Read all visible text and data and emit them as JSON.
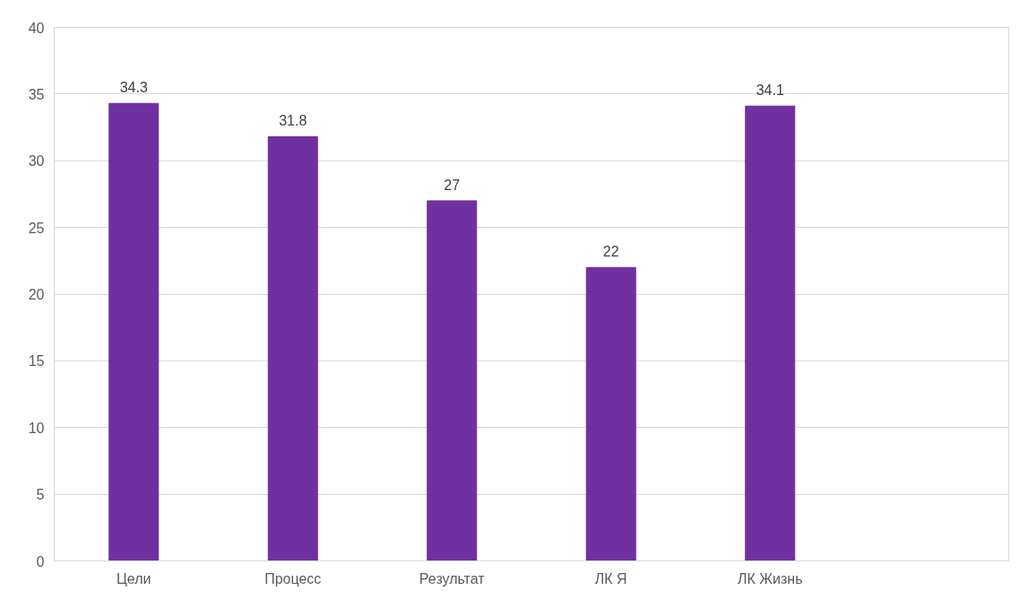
{
  "chart_data": {
    "type": "bar",
    "categories": [
      "Цели",
      "Процесс",
      "Результат",
      "ЛК Я",
      "ЛК Жизнь",
      null
    ],
    "values": [
      34.3,
      31.8,
      27,
      22,
      34.1,
      null
    ],
    "color": "#7030a0",
    "ylim": [
      0,
      40
    ],
    "yticks": [
      0,
      5,
      10,
      15,
      20,
      25,
      30,
      35,
      40
    ],
    "grid": "y",
    "data_labels": true
  }
}
